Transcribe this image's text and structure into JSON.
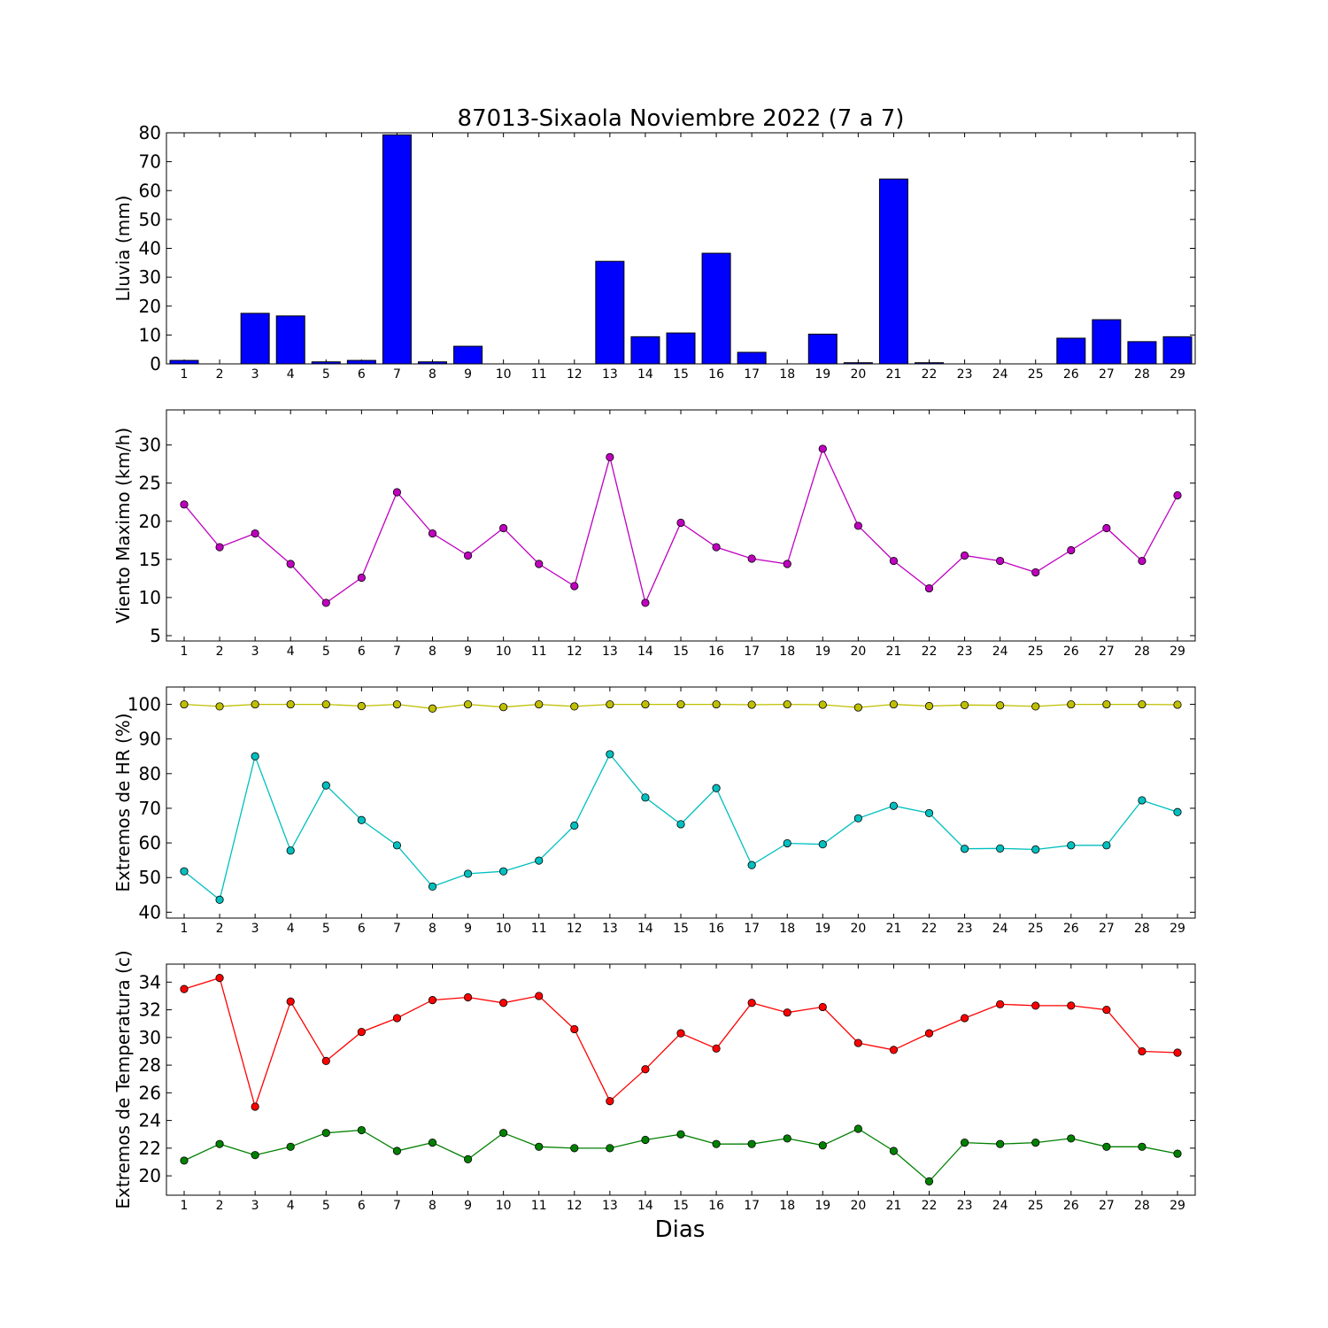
{
  "chart_data": {
    "title": "87013-Sixaola Noviembre 2022  (7 a 7)",
    "xlabel": "Dias",
    "days": [
      1,
      2,
      3,
      4,
      5,
      6,
      7,
      8,
      9,
      10,
      11,
      12,
      13,
      14,
      15,
      16,
      17,
      18,
      19,
      20,
      21,
      22,
      23,
      24,
      25,
      26,
      27,
      28,
      29
    ],
    "panels": [
      {
        "type": "bar",
        "ylabel": "Lluvia (mm)",
        "ylim": [
          0,
          80
        ],
        "yticks": [
          0,
          10,
          20,
          30,
          40,
          50,
          60,
          70,
          80
        ],
        "grid": false,
        "series": [
          {
            "color": "#0000ff",
            "values": [
              1.2,
              0,
              17.5,
              16.6,
              0.7,
              1.2,
              79.3,
              0.7,
              6.1,
              0,
              0,
              0,
              35.5,
              9.4,
              10.7,
              38.3,
              4.0,
              0,
              10.3,
              0.4,
              64.0,
              0.4,
              0,
              0,
              0,
              8.9,
              15.3,
              7.7,
              9.4
            ]
          }
        ]
      },
      {
        "type": "line",
        "ylabel": "Viento Maximo (km/h)",
        "ylim": [
          4.3,
          34.6
        ],
        "yticks": [
          5,
          10,
          15,
          20,
          25,
          30
        ],
        "grid": false,
        "series": [
          {
            "color": "#bf00bf",
            "values": [
              22.2,
              16.6,
              18.4,
              14.4,
              9.3,
              12.6,
              23.8,
              18.4,
              15.5,
              19.1,
              14.4,
              11.5,
              28.4,
              9.3,
              19.8,
              16.6,
              15.1,
              14.4,
              29.5,
              19.4,
              14.8,
              11.2,
              15.5,
              14.8,
              13.3,
              16.2,
              19.1,
              14.8,
              23.4
            ]
          }
        ]
      },
      {
        "type": "line",
        "ylabel": "Extremos de HR (%)",
        "ylim": [
          38.3,
          105
        ],
        "yticks": [
          40,
          50,
          60,
          70,
          80,
          90,
          100
        ],
        "grid": false,
        "series": [
          {
            "color": "#bfbf00",
            "values": [
              100,
              99.4,
              100,
              100,
              100,
              99.5,
              100,
              98.8,
              100,
              99.2,
              100,
              99.4,
              100,
              100,
              100,
              100,
              99.9,
              100,
              99.9,
              99.1,
              100,
              99.5,
              99.8,
              99.7,
              99.4,
              100,
              100,
              100,
              99.9
            ]
          },
          {
            "color": "#00bfbf",
            "values": [
              51.8,
              43.6,
              85.0,
              57.8,
              76.6,
              66.6,
              59.3,
              47.4,
              51.1,
              51.8,
              54.9,
              65.0,
              85.6,
              73.1,
              65.4,
              75.8,
              53.6,
              59.9,
              59.6,
              67.1,
              70.7,
              68.6,
              58.3,
              58.4,
              58.1,
              59.3,
              59.3,
              72.3,
              68.9
            ]
          }
        ]
      },
      {
        "type": "line",
        "ylabel": "Extremos de Temperatura (c)",
        "ylim": [
          18.6,
          35.3
        ],
        "yticks": [
          20,
          22,
          24,
          26,
          28,
          30,
          32,
          34
        ],
        "grid": false,
        "series": [
          {
            "color": "#ff0000",
            "values": [
              33.5,
              34.3,
              25.0,
              32.6,
              28.3,
              30.4,
              31.4,
              32.7,
              32.9,
              32.5,
              33.0,
              30.6,
              25.4,
              27.7,
              30.3,
              29.2,
              32.5,
              31.8,
              32.2,
              29.6,
              29.1,
              30.3,
              31.4,
              32.4,
              32.3,
              32.3,
              32.0,
              29.0,
              28.9
            ]
          },
          {
            "color": "#008000",
            "values": [
              21.1,
              22.3,
              21.5,
              22.1,
              23.1,
              23.3,
              21.8,
              22.4,
              21.2,
              23.1,
              22.1,
              22.0,
              22.0,
              22.6,
              23.0,
              22.3,
              22.3,
              22.7,
              22.2,
              23.4,
              21.8,
              19.6,
              22.4,
              22.3,
              22.4,
              22.7,
              22.1,
              22.1,
              21.6
            ]
          }
        ]
      }
    ]
  }
}
